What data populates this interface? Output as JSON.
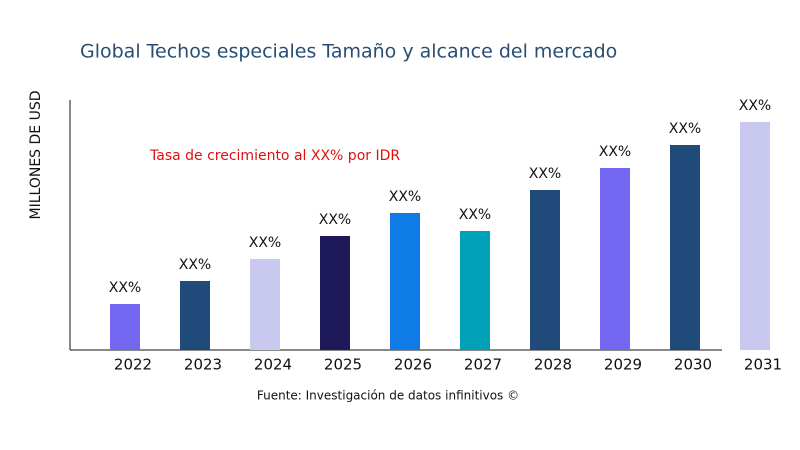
{
  "chart_data": {
    "type": "bar",
    "title": "Global Techos especiales Tamaño y alcance del mercado",
    "y_label": "MILLONES DE USD",
    "annotation": "Tasa de crecimiento al XX% por IDR",
    "source": "Fuente: Investigación de datos infinitivos ©",
    "categories": [
      "2022",
      "2023",
      "2024",
      "2025",
      "2026",
      "2027",
      "2028",
      "2029",
      "2030",
      "2031"
    ],
    "values": [
      46,
      69,
      91,
      114,
      137,
      119,
      160,
      182,
      205,
      228
    ],
    "value_labels": [
      "XX%",
      "XX%",
      "XX%",
      "XX%",
      "XX%",
      "XX%",
      "XX%",
      "XX%",
      "XX%",
      "XX%"
    ],
    "colors": [
      "#7366f0",
      "#1f4a7a",
      "#c9c9f0",
      "#1e1a5a",
      "#0f7be6",
      "#00a0b8",
      "#1f4a7a",
      "#7366f0",
      "#1f4a7a",
      "#c9c9f0"
    ],
    "ylim": [
      0,
      250
    ]
  }
}
